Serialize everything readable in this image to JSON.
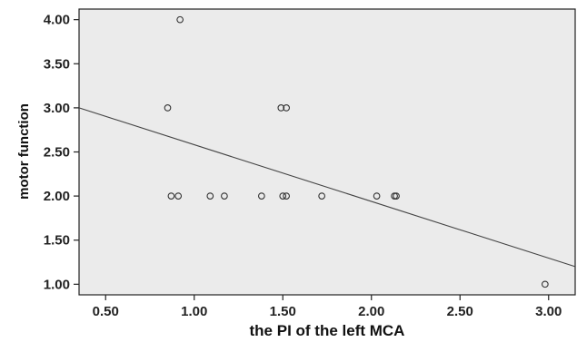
{
  "chart_data": {
    "type": "scatter",
    "title": "",
    "xlabel": "the PI of the left MCA",
    "ylabel": "motor function",
    "xlim": [
      0.35,
      3.15
    ],
    "ylim": [
      0.88,
      4.12
    ],
    "x_ticks": [
      "0.50",
      "1.00",
      "1.50",
      "2.00",
      "2.50",
      "3.00"
    ],
    "y_ticks": [
      "1.00",
      "1.50",
      "2.00",
      "2.50",
      "3.00",
      "3.50",
      "4.00"
    ],
    "x_tick_values": [
      0.5,
      1.0,
      1.5,
      2.0,
      2.5,
      3.0
    ],
    "y_tick_values": [
      1.0,
      1.5,
      2.0,
      2.5,
      3.0,
      3.5,
      4.0
    ],
    "grid": false,
    "plot_background": "#ebebeb",
    "marker_color": "#333333",
    "fit_line": {
      "type": "linear",
      "x": [
        0.35,
        3.15
      ],
      "y": [
        3.0,
        1.2
      ],
      "color": "#444444"
    },
    "points": [
      {
        "x": 0.92,
        "y": 4.0
      },
      {
        "x": 0.85,
        "y": 3.0
      },
      {
        "x": 1.49,
        "y": 3.0
      },
      {
        "x": 1.52,
        "y": 3.0
      },
      {
        "x": 0.87,
        "y": 2.0
      },
      {
        "x": 0.91,
        "y": 2.0
      },
      {
        "x": 1.09,
        "y": 2.0
      },
      {
        "x": 1.17,
        "y": 2.0
      },
      {
        "x": 1.38,
        "y": 2.0
      },
      {
        "x": 1.5,
        "y": 2.0
      },
      {
        "x": 1.52,
        "y": 2.0
      },
      {
        "x": 1.72,
        "y": 2.0
      },
      {
        "x": 2.03,
        "y": 2.0
      },
      {
        "x": 2.13,
        "y": 2.0
      },
      {
        "x": 2.14,
        "y": 2.0
      },
      {
        "x": 2.98,
        "y": 1.0
      }
    ]
  }
}
